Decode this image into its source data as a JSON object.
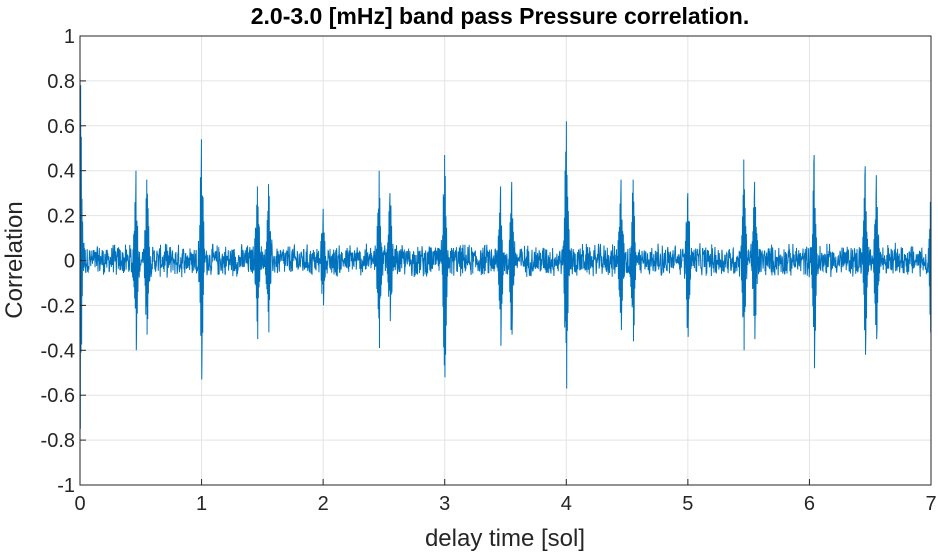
{
  "chart_data": {
    "type": "line",
    "title": "2.0-3.0 [mHz] band pass Pressure correlation.",
    "xlabel": "delay time [sol]",
    "ylabel": "Correlation",
    "xlim": [
      0,
      7
    ],
    "ylim": [
      -1,
      1
    ],
    "xticks": [
      "0",
      "1",
      "2",
      "3",
      "4",
      "5",
      "6",
      "7"
    ],
    "yticks": [
      "-1",
      "-0.8",
      "-0.6",
      "-0.4",
      "-0.2",
      "0",
      "0.2",
      "0.4",
      "0.6",
      "0.8",
      "1"
    ],
    "grid": true,
    "line_color": "#0072BD",
    "baseline_noise_amplitude": 0.08,
    "peaks": [
      {
        "x": 0.0,
        "max": 1.0,
        "min": -0.75
      },
      {
        "x": 0.46,
        "max": 0.4,
        "min": -0.4
      },
      {
        "x": 0.55,
        "max": 0.36,
        "min": -0.33
      },
      {
        "x": 1.0,
        "max": 0.54,
        "min": -0.53
      },
      {
        "x": 1.46,
        "max": 0.33,
        "min": -0.35
      },
      {
        "x": 1.55,
        "max": 0.34,
        "min": -0.32
      },
      {
        "x": 2.0,
        "max": 0.23,
        "min": -0.2
      },
      {
        "x": 2.46,
        "max": 0.4,
        "min": -0.39
      },
      {
        "x": 2.55,
        "max": 0.3,
        "min": -0.27
      },
      {
        "x": 3.0,
        "max": 0.47,
        "min": -0.52
      },
      {
        "x": 3.46,
        "max": 0.33,
        "min": -0.38
      },
      {
        "x": 3.55,
        "max": 0.35,
        "min": -0.33
      },
      {
        "x": 4.0,
        "max": 0.62,
        "min": -0.57
      },
      {
        "x": 4.45,
        "max": 0.36,
        "min": -0.31
      },
      {
        "x": 4.55,
        "max": 0.36,
        "min": -0.36
      },
      {
        "x": 5.0,
        "max": 0.3,
        "min": -0.34
      },
      {
        "x": 5.46,
        "max": 0.45,
        "min": -0.4
      },
      {
        "x": 5.55,
        "max": 0.35,
        "min": -0.35
      },
      {
        "x": 6.04,
        "max": 0.47,
        "min": -0.48
      },
      {
        "x": 6.46,
        "max": 0.42,
        "min": -0.42
      },
      {
        "x": 6.55,
        "max": 0.38,
        "min": -0.35
      },
      {
        "x": 7.0,
        "max": 0.3,
        "min": -0.32
      }
    ]
  }
}
